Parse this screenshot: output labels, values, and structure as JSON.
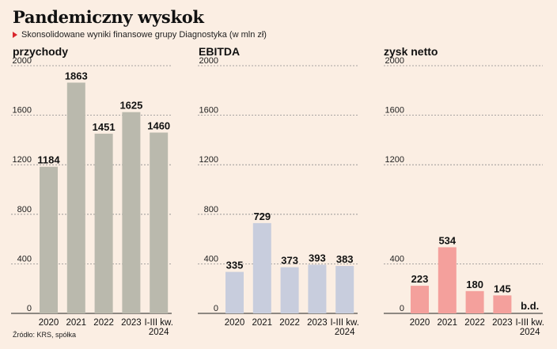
{
  "title": "Pandemiczny wyskok",
  "subtitle": "Skonsolidowane wyniki finansowe grupy Diagnostyka (w mln zł)",
  "subtitle_marker_icon": "red-triangle-icon",
  "source": "Źródło: KRS, spółka",
  "chart_data": [
    {
      "type": "bar",
      "title": "przychody",
      "categories": [
        "2020",
        "2021",
        "2022",
        "2023",
        "I-III kw.\n2024"
      ],
      "values": [
        1184,
        1863,
        1451,
        1625,
        1460
      ],
      "labels": [
        "1184",
        "1863",
        "1451",
        "1625",
        "1460"
      ],
      "yticks": [
        0,
        400,
        800,
        1200,
        1600,
        2000
      ],
      "ylim": [
        0,
        2000
      ],
      "color": "#bab9ad",
      "grid": true
    },
    {
      "type": "bar",
      "title": "EBITDA",
      "categories": [
        "2020",
        "2021",
        "2022",
        "2023",
        "I-III kw.\n2024"
      ],
      "values": [
        335,
        729,
        373,
        393,
        383
      ],
      "labels": [
        "335",
        "729",
        "373",
        "393",
        "383"
      ],
      "yticks": [
        0,
        400,
        800,
        1200,
        1600,
        2000
      ],
      "ylim": [
        0,
        2000
      ],
      "color": "#c8cddd",
      "grid": true
    },
    {
      "type": "bar",
      "title": "zysk netto",
      "categories": [
        "2020",
        "2021",
        "2022",
        "2023",
        "I-III kw.\n2024"
      ],
      "values": [
        223,
        534,
        180,
        145,
        null
      ],
      "labels": [
        "223",
        "534",
        "180",
        "145",
        "b.d."
      ],
      "yticks": [
        0,
        400,
        1200,
        1600,
        2000
      ],
      "ylim": [
        0,
        2000
      ],
      "color": "#f4a09c",
      "grid": true
    }
  ]
}
